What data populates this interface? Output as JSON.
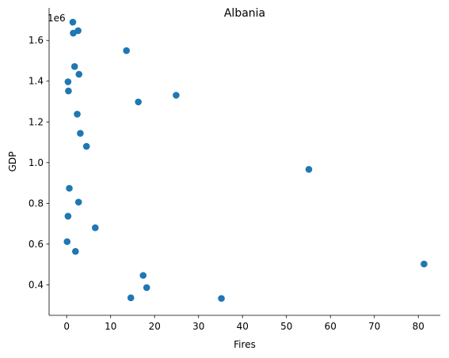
{
  "chart_data": {
    "type": "scatter",
    "title": "Albania",
    "xlabel": "Fires",
    "ylabel": "GDP",
    "offset_label": "1e6",
    "xlim": [
      -4,
      85
    ],
    "ylim": [
      250000,
      1760000
    ],
    "x_ticks": [
      0,
      10,
      20,
      30,
      40,
      50,
      60,
      70,
      80
    ],
    "y_ticks": [
      400000,
      600000,
      800000,
      1000000,
      1200000,
      1400000,
      1600000
    ],
    "y_tick_labels": [
      "0.4",
      "0.6",
      "0.8",
      "1.0",
      "1.2",
      "1.4",
      "1.6"
    ],
    "grid": false,
    "marker_color": "#1f77b4",
    "points": [
      {
        "x": 1.4,
        "y": 1690000
      },
      {
        "x": 2.6,
        "y": 1648000
      },
      {
        "x": 1.5,
        "y": 1636000
      },
      {
        "x": 13.6,
        "y": 1550000
      },
      {
        "x": 1.8,
        "y": 1472000
      },
      {
        "x": 2.8,
        "y": 1434000
      },
      {
        "x": 0.3,
        "y": 1397000
      },
      {
        "x": 0.4,
        "y": 1352000
      },
      {
        "x": 24.9,
        "y": 1331000
      },
      {
        "x": 16.3,
        "y": 1298000
      },
      {
        "x": 2.4,
        "y": 1238000
      },
      {
        "x": 3.1,
        "y": 1144000
      },
      {
        "x": 4.5,
        "y": 1080000
      },
      {
        "x": 55.1,
        "y": 967000
      },
      {
        "x": 0.6,
        "y": 874000
      },
      {
        "x": 2.7,
        "y": 806000
      },
      {
        "x": 0.3,
        "y": 737000
      },
      {
        "x": 6.5,
        "y": 680000
      },
      {
        "x": 0.1,
        "y": 612000
      },
      {
        "x": 2.0,
        "y": 564000
      },
      {
        "x": 81.3,
        "y": 502000
      },
      {
        "x": 17.4,
        "y": 446000
      },
      {
        "x": 18.2,
        "y": 386000
      },
      {
        "x": 14.6,
        "y": 336000
      },
      {
        "x": 35.2,
        "y": 333000
      }
    ]
  }
}
